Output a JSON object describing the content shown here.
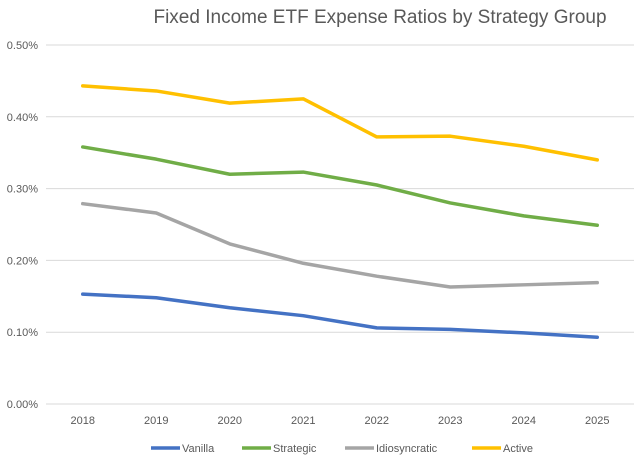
{
  "chart_data": {
    "type": "line",
    "title": "Fixed Income ETF Expense Ratios by Strategy Group",
    "xlabel": "",
    "ylabel": "",
    "categories": [
      "2018",
      "2019",
      "2020",
      "2021",
      "2022",
      "2023",
      "2024",
      "2025"
    ],
    "ylim": [
      0,
      0.5
    ],
    "yticks": [
      "0.00%",
      "0.10%",
      "0.20%",
      "0.30%",
      "0.40%",
      "0.50%"
    ],
    "ytick_values": [
      0,
      0.1,
      0.2,
      0.3,
      0.4,
      0.5
    ],
    "grid": "horizontal",
    "legend_position": "bottom",
    "series": [
      {
        "name": "Vanilla",
        "color": "#4472C4",
        "values": [
          0.153,
          0.148,
          0.134,
          0.123,
          0.106,
          0.104,
          0.099,
          0.093
        ]
      },
      {
        "name": "Strategic",
        "color": "#70AD47",
        "values": [
          0.358,
          0.341,
          0.32,
          0.323,
          0.305,
          0.28,
          0.262,
          0.249
        ]
      },
      {
        "name": "Idiosyncratic",
        "color": "#A5A5A5",
        "values": [
          0.279,
          0.266,
          0.223,
          0.196,
          0.178,
          0.163,
          0.166,
          0.169
        ]
      },
      {
        "name": "Active",
        "color": "#FFC000",
        "values": [
          0.443,
          0.436,
          0.419,
          0.425,
          0.372,
          0.373,
          0.359,
          0.34
        ]
      }
    ]
  }
}
